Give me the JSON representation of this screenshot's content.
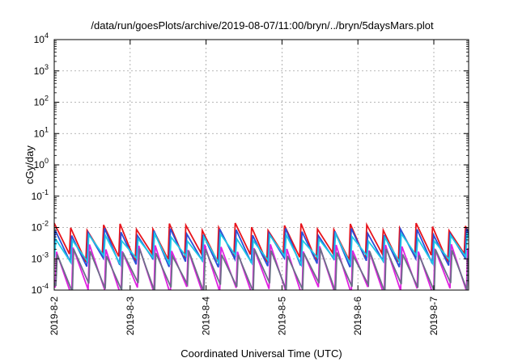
{
  "chart_data": {
    "type": "line",
    "title": "/data/run/goesPlots/archive/2019-08-07/11:00/bryn/../bryn/5daysMars.plot",
    "xlabel": "Coordinated Universal Time (UTC)",
    "ylabel": "cGy/day",
    "yscale": "log",
    "ylim": [
      0.0001,
      10000
    ],
    "xlim": [
      "2019-08-02",
      "2019-08-07 11:00"
    ],
    "xticks": [
      "2019-8-2",
      "2019-8-3",
      "2019-8-4",
      "2019-8-5",
      "2019-8-6",
      "2019-8-7"
    ],
    "yticks": [
      {
        "value": 0.0001,
        "base": "10",
        "exp": "-4"
      },
      {
        "value": 0.001,
        "base": "10",
        "exp": "-3"
      },
      {
        "value": 0.01,
        "base": "10",
        "exp": "-2"
      },
      {
        "value": 0.1,
        "base": "10",
        "exp": "-1"
      },
      {
        "value": 1,
        "base": "10",
        "exp": "0"
      },
      {
        "value": 10,
        "base": "10",
        "exp": "1"
      },
      {
        "value": 100,
        "base": "10",
        "exp": "2"
      },
      {
        "value": 1000,
        "base": "10",
        "exp": "3"
      },
      {
        "value": 10000,
        "base": "10",
        "exp": "4"
      }
    ],
    "grid": true,
    "legend": "none",
    "sawtooth_period_hours": 5.2,
    "series": [
      {
        "color": "#e8141c",
        "peak": 0.0105,
        "trough": 0.0011,
        "phase": 0.0
      },
      {
        "color": "#2a4fd8",
        "peak": 0.0072,
        "trough": 0.00075,
        "phase": 0.06
      },
      {
        "color": "#1ec8e6",
        "peak": 0.0048,
        "trough": 0.0009,
        "phase": 0.1
      },
      {
        "color": "#e020e0",
        "peak": 0.0022,
        "trough": 9e-05,
        "phase": 0.14
      },
      {
        "color": "#6b6f88",
        "peak": 0.0016,
        "trough": 0.00012,
        "phase": 0.18
      }
    ]
  }
}
